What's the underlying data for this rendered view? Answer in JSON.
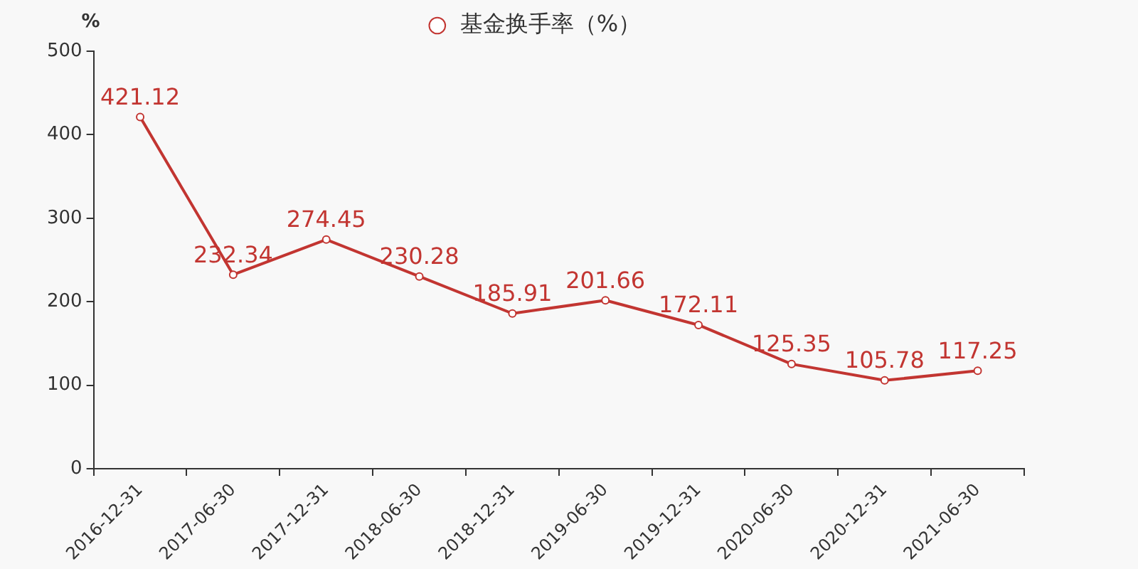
{
  "chart_data": {
    "type": "line",
    "ylabel": "%",
    "categories": [
      "2016-12-31",
      "2017-06-30",
      "2017-12-31",
      "2018-06-30",
      "2018-12-31",
      "2019-06-30",
      "2019-12-31",
      "2020-06-30",
      "2020-12-31",
      "2021-06-30"
    ],
    "series": [
      {
        "name": "基金换手率（%）",
        "color": "#c23531",
        "values": [
          421.12,
          232.34,
          274.45,
          230.28,
          185.91,
          201.66,
          172.11,
          125.35,
          105.78,
          117.25
        ]
      }
    ],
    "ylim": [
      0,
      500
    ],
    "yticks": [
      0,
      100,
      200,
      300,
      400,
      500
    ],
    "grid": false,
    "legend": "top",
    "marker": "circle",
    "line_style": "solid",
    "data_labels": true
  }
}
